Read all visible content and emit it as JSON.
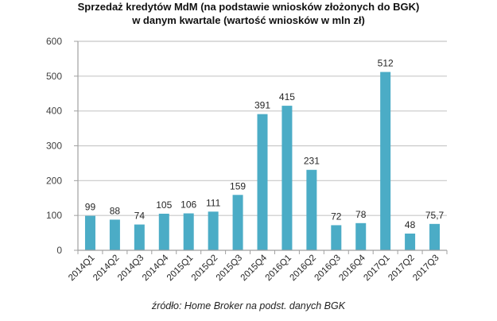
{
  "chart_data": {
    "type": "bar",
    "title": "Sprzedaż kredytów MdM (na podstawie wniosków złożonych do BGK)",
    "subtitle": "w danym kwartale (wartość wniosków w mln zł)",
    "xlabel": "",
    "ylabel": "",
    "ylim": [
      0,
      600
    ],
    "yticks": [
      0,
      100,
      200,
      300,
      400,
      500,
      600
    ],
    "grid": true,
    "legend": "none",
    "categories": [
      "2014Q1",
      "2014Q2",
      "2014Q3",
      "2014Q4",
      "2015Q1",
      "2015Q2",
      "2015Q3",
      "2015Q4",
      "2016Q1",
      "2016Q2",
      "2016Q3",
      "2016Q4",
      "2017Q1",
      "2017Q2",
      "2017Q3"
    ],
    "values": [
      99,
      88,
      74,
      105,
      106,
      111,
      159,
      391,
      415,
      231,
      72,
      78,
      512,
      48,
      75.7
    ],
    "data_labels": [
      "99",
      "88",
      "74",
      "105",
      "106",
      "111",
      "159",
      "391",
      "415",
      "231",
      "72",
      "78",
      "512",
      "48",
      "75,7"
    ],
    "bar_color": "#4BACC6",
    "source": "źródło: Home Broker na podst. danych BGK"
  }
}
